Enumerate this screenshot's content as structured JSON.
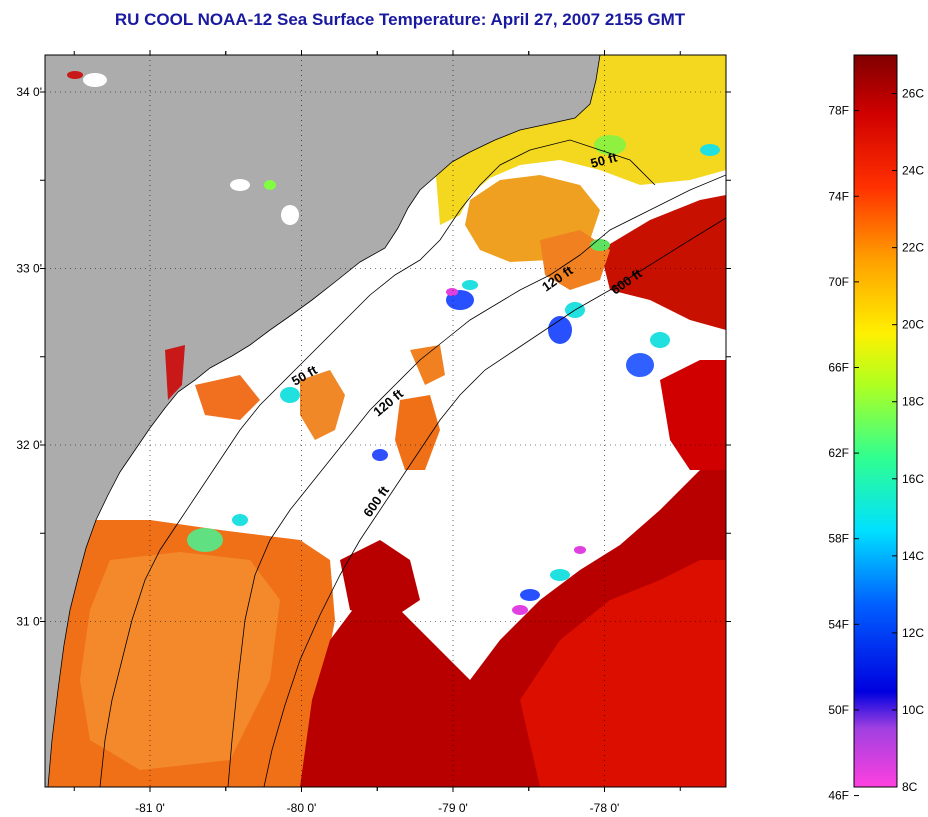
{
  "title": "RU COOL  NOAA-12  Sea Surface Temperature:  April 27, 2007 2155 GMT",
  "map": {
    "lat_labels": [
      {
        "lat": 34,
        "label": "34 0'"
      },
      {
        "lat": 33.5,
        "label": ""
      },
      {
        "lat": 33,
        "label": "33 0'"
      },
      {
        "lat": 32.5,
        "label": ""
      },
      {
        "lat": 32,
        "label": "32 0'"
      },
      {
        "lat": 31.5,
        "label": ""
      },
      {
        "lat": 31,
        "label": "31 0'"
      }
    ],
    "lon_labels": [
      {
        "lon": -81,
        "label": "-81 0'"
      },
      {
        "lon": -80,
        "label": "-80 0'"
      },
      {
        "lon": -79,
        "label": "-79 0'"
      },
      {
        "lon": -78,
        "label": "-78 0'"
      }
    ],
    "contour_labels": [
      "50 ft",
      "120 ft",
      "600 ft",
      "50 ft",
      "120 ft",
      "600 ft"
    ],
    "colors": {
      "land": "#acacac",
      "cloud": "#ffffff",
      "warm_shelf": "#f07018",
      "gulf_stream": "#b80000",
      "nearshore_yellow": "#f4d820",
      "cool_blue": "#2850ff",
      "cyan": "#20e0e0",
      "magenta": "#e040e0"
    }
  },
  "colorbar": {
    "fahrenheit": [
      "78F",
      "74F",
      "70F",
      "66F",
      "62F",
      "58F",
      "54F",
      "50F",
      "46F"
    ],
    "celsius": [
      "26C",
      "24C",
      "22C",
      "20C",
      "18C",
      "16C",
      "14C",
      "12C",
      "10C",
      "8C"
    ],
    "celsius_min": 8,
    "celsius_max": 27
  }
}
